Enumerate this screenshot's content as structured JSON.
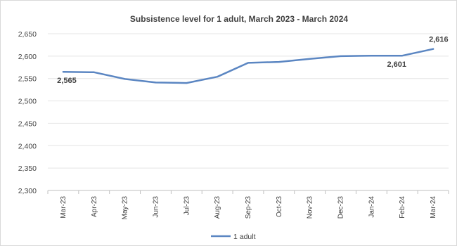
{
  "chart_data": {
    "type": "line",
    "title": "Subsistence level for 1 adult, March 2023 - March 2024",
    "xlabel": "",
    "ylabel": "",
    "categories": [
      "Mar-23",
      "Apr-23",
      "May-23",
      "Jun-23",
      "Jul-23",
      "Aug-23",
      "Sep-23",
      "Oct-23",
      "Nov-23",
      "Dec-23",
      "Jan-24",
      "Feb-24",
      "Mar-24"
    ],
    "series": [
      {
        "name": "1 adult",
        "color": "#5b86c2",
        "values": [
          2565,
          2564,
          2549,
          2541,
          2540,
          2554,
          2585,
          2587,
          2594,
          2600,
          2601,
          2601,
          2616
        ]
      }
    ],
    "ylim": [
      2300,
      2650
    ],
    "yticks": [
      2300,
      2350,
      2400,
      2450,
      2500,
      2550,
      2600,
      2650
    ],
    "ytick_labels": [
      "2,300",
      "2,350",
      "2,400",
      "2,450",
      "2,500",
      "2,550",
      "2,600",
      "2,650"
    ],
    "data_labels": [
      {
        "index": 0,
        "text": "2,565"
      },
      {
        "index": 11,
        "text": "2,601"
      },
      {
        "index": 12,
        "text": "2,616"
      }
    ],
    "grid": true,
    "legend_position": "bottom"
  }
}
